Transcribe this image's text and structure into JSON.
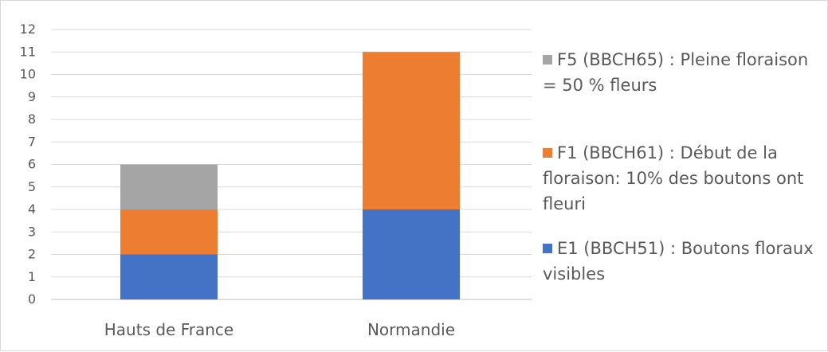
{
  "chart_data": {
    "type": "bar",
    "stacked": true,
    "categories": [
      "Hauts de France",
      "Normandie"
    ],
    "series": [
      {
        "name": "E1 (BBCH51) : Boutons floraux visibles",
        "values": [
          2,
          4
        ],
        "color": "#4472c4"
      },
      {
        "name": "F1 (BBCH61) : Début de la floraison: 10% des boutons ont fleuri",
        "values": [
          2,
          7
        ],
        "color": "#ed7d31"
      },
      {
        "name": "F5 (BBCH65) : Pleine floraison = 50 % fleurs",
        "values": [
          2,
          0
        ],
        "color": "#a5a5a5"
      }
    ],
    "y_ticks": [
      "0",
      "1",
      "2",
      "3",
      "4",
      "5",
      "6",
      "7",
      "8",
      "9",
      "10",
      "11",
      "12"
    ],
    "ylim": [
      0,
      12
    ],
    "grid": true,
    "legend_position": "right",
    "legend_order": [
      2,
      1,
      0
    ],
    "title": "",
    "xlabel": "",
    "ylabel": ""
  }
}
